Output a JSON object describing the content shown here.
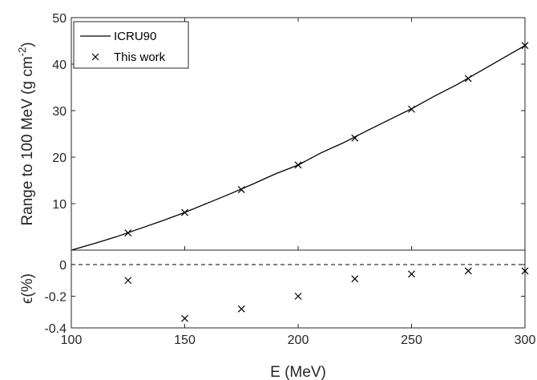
{
  "chart_data": [
    {
      "type": "line",
      "panel": "top",
      "ylabel_main": "Range to 100 MeV (g cm",
      "ylabel_sup": "-2",
      "ylabel_close": ")",
      "xlim": [
        100,
        300
      ],
      "ylim": [
        0,
        50
      ],
      "yticks": [
        10,
        20,
        30,
        40,
        50
      ],
      "grid": false,
      "legend_position": "top-left",
      "colors": {
        "line": "#000000",
        "marker": "#000000",
        "axes": "#262626"
      },
      "series": [
        {
          "name": "ICRU90",
          "style": "solid-line",
          "x": [
            100,
            110,
            120,
            130,
            140,
            150,
            160,
            170,
            180,
            190,
            200,
            210,
            220,
            230,
            240,
            250,
            260,
            270,
            280,
            290,
            300
          ],
          "y": [
            0.0,
            1.4,
            2.9,
            4.6,
            6.3,
            8.1,
            10.1,
            12.1,
            14.2,
            16.4,
            18.3,
            20.9,
            23.1,
            25.6,
            28.0,
            30.4,
            33.1,
            35.6,
            38.4,
            41.2,
            44.0
          ]
        },
        {
          "name": "This work",
          "style": "x-marker",
          "x": [
            125,
            150,
            175,
            200,
            225,
            250,
            275,
            300
          ],
          "y": [
            3.7,
            8.1,
            13.0,
            18.3,
            24.1,
            30.3,
            36.9,
            44.0
          ]
        }
      ]
    },
    {
      "type": "scatter",
      "panel": "bottom",
      "xlabel": "E (MeV)",
      "ylabel": "ϵ(%)",
      "xlim": [
        100,
        300
      ],
      "ylim": [
        -0.4,
        0.1
      ],
      "xticks": [
        100,
        150,
        200,
        250,
        300
      ],
      "yticks": [
        -0.4,
        -0.2,
        0
      ],
      "reference_line": {
        "y": 0,
        "style": "dashed"
      },
      "grid": false,
      "series": [
        {
          "style": "x-marker",
          "x": [
            125,
            150,
            175,
            200,
            225,
            250,
            275,
            300
          ],
          "y": [
            -0.1,
            -0.34,
            -0.28,
            -0.2,
            -0.09,
            -0.06,
            -0.04,
            -0.04
          ]
        }
      ]
    }
  ]
}
